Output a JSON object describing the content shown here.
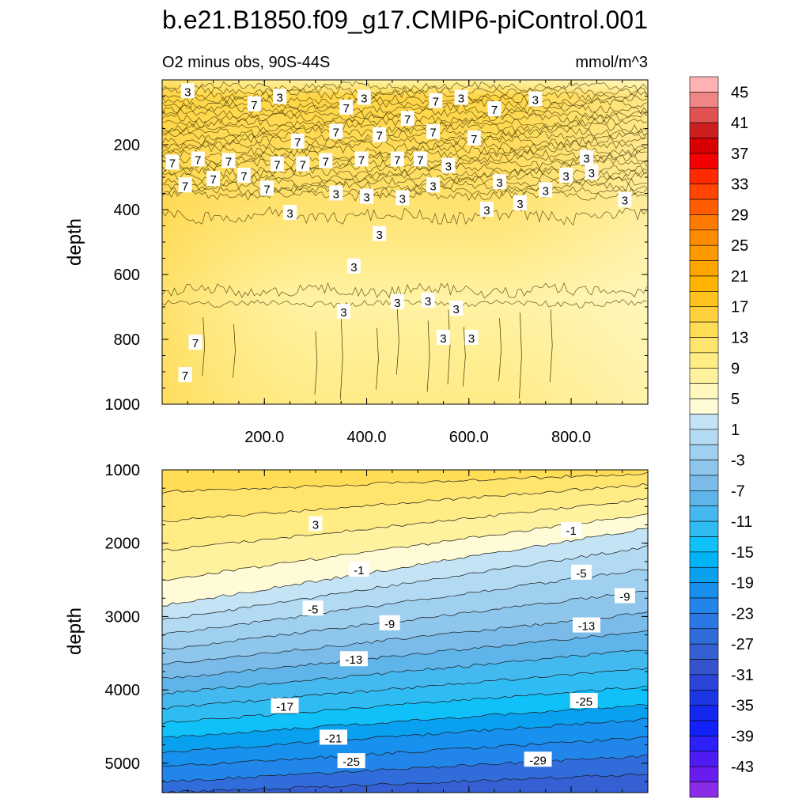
{
  "chart_data": {
    "type": "contour",
    "title": "b.e21.B1850.f09_g17.CMIP6-piControl.001",
    "subtitle_left": "O2 minus obs, 90S-44S",
    "subtitle_right": "mmol/m^3",
    "xlim": [
      0,
      950
    ],
    "x_ticks": [
      "200.0",
      "400.0",
      "600.0",
      "800.0"
    ],
    "x_tick_values": [
      200,
      400,
      600,
      800
    ],
    "panels": [
      {
        "name": "upper",
        "ylabel": "depth",
        "ylim": [
          0,
          1000
        ],
        "y_ticks": [
          "200",
          "400",
          "600",
          "800",
          "1000"
        ],
        "y_tick_values": [
          200,
          400,
          600,
          800,
          1000
        ],
        "contour_labels": [
          {
            "text": "3",
            "x": 50,
            "y": 35
          },
          {
            "text": "7",
            "x": 180,
            "y": 75
          },
          {
            "text": "3",
            "x": 230,
            "y": 52
          },
          {
            "text": "7",
            "x": 360,
            "y": 85
          },
          {
            "text": "3",
            "x": 395,
            "y": 55
          },
          {
            "text": "7",
            "x": 535,
            "y": 65
          },
          {
            "text": "3",
            "x": 585,
            "y": 55
          },
          {
            "text": "7",
            "x": 650,
            "y": 90
          },
          {
            "text": "3",
            "x": 730,
            "y": 60
          },
          {
            "text": "7",
            "x": 480,
            "y": 120
          },
          {
            "text": "7",
            "x": 425,
            "y": 170
          },
          {
            "text": "7",
            "x": 530,
            "y": 160
          },
          {
            "text": "7",
            "x": 340,
            "y": 160
          },
          {
            "text": "7",
            "x": 265,
            "y": 190
          },
          {
            "text": "7",
            "x": 610,
            "y": 180
          },
          {
            "text": "7",
            "x": 20,
            "y": 255
          },
          {
            "text": "7",
            "x": 70,
            "y": 245
          },
          {
            "text": "7",
            "x": 130,
            "y": 250
          },
          {
            "text": "7",
            "x": 225,
            "y": 260
          },
          {
            "text": "7",
            "x": 275,
            "y": 260
          },
          {
            "text": "7",
            "x": 320,
            "y": 250
          },
          {
            "text": "7",
            "x": 390,
            "y": 245
          },
          {
            "text": "7",
            "x": 460,
            "y": 245
          },
          {
            "text": "7",
            "x": 505,
            "y": 245
          },
          {
            "text": "3",
            "x": 560,
            "y": 265
          },
          {
            "text": "3",
            "x": 830,
            "y": 240
          },
          {
            "text": "3",
            "x": 790,
            "y": 295
          },
          {
            "text": "3",
            "x": 840,
            "y": 285
          },
          {
            "text": "7",
            "x": 45,
            "y": 325
          },
          {
            "text": "7",
            "x": 100,
            "y": 305
          },
          {
            "text": "7",
            "x": 160,
            "y": 295
          },
          {
            "text": "7",
            "x": 205,
            "y": 335
          },
          {
            "text": "3",
            "x": 340,
            "y": 350
          },
          {
            "text": "3",
            "x": 400,
            "y": 360
          },
          {
            "text": "3",
            "x": 470,
            "y": 365
          },
          {
            "text": "3",
            "x": 530,
            "y": 325
          },
          {
            "text": "3",
            "x": 660,
            "y": 315
          },
          {
            "text": "3",
            "x": 750,
            "y": 340
          },
          {
            "text": "3",
            "x": 635,
            "y": 400
          },
          {
            "text": "3",
            "x": 700,
            "y": 380
          },
          {
            "text": "3",
            "x": 905,
            "y": 370
          },
          {
            "text": "3",
            "x": 250,
            "y": 410
          },
          {
            "text": "3",
            "x": 425,
            "y": 475
          },
          {
            "text": "3",
            "x": 375,
            "y": 575
          },
          {
            "text": "3",
            "x": 355,
            "y": 715
          },
          {
            "text": "3",
            "x": 460,
            "y": 685
          },
          {
            "text": "3",
            "x": 520,
            "y": 680
          },
          {
            "text": "3",
            "x": 575,
            "y": 705
          },
          {
            "text": "3",
            "x": 550,
            "y": 795
          },
          {
            "text": "3",
            "x": 605,
            "y": 795
          },
          {
            "text": "7",
            "x": 65,
            "y": 810
          },
          {
            "text": "7",
            "x": 45,
            "y": 910
          }
        ]
      },
      {
        "name": "lower",
        "ylabel": "depth",
        "ylim": [
          1000,
          5400
        ],
        "y_ticks": [
          "1000",
          "2000",
          "3000",
          "4000",
          "5000"
        ],
        "y_tick_values": [
          1000,
          2000,
          3000,
          4000,
          5000
        ],
        "contour_labels": [
          {
            "text": "3",
            "x": 300,
            "y": 1740
          },
          {
            "text": "-1",
            "x": 800,
            "y": 1820
          },
          {
            "text": "-1",
            "x": 385,
            "y": 2360
          },
          {
            "text": "-5",
            "x": 820,
            "y": 2400
          },
          {
            "text": "-9",
            "x": 905,
            "y": 2720
          },
          {
            "text": "-5",
            "x": 295,
            "y": 2890
          },
          {
            "text": "-9",
            "x": 445,
            "y": 3090
          },
          {
            "text": "-13",
            "x": 830,
            "y": 3120
          },
          {
            "text": "-13",
            "x": 375,
            "y": 3580
          },
          {
            "text": "-17",
            "x": 240,
            "y": 4220
          },
          {
            "text": "-25",
            "x": 825,
            "y": 4150
          },
          {
            "text": "-21",
            "x": 335,
            "y": 4650
          },
          {
            "text": "-25",
            "x": 370,
            "y": 4970
          },
          {
            "text": "-29",
            "x": 735,
            "y": 4950
          }
        ]
      }
    ],
    "colorbar": {
      "labels": [
        "45",
        "41",
        "37",
        "33",
        "29",
        "25",
        "21",
        "17",
        "13",
        "9",
        "5",
        "1",
        "-3",
        "-7",
        "-11",
        "-15",
        "-19",
        "-23",
        "-27",
        "-31",
        "-35",
        "-39",
        "-43"
      ],
      "colors": [
        "#ffb3b3",
        "#f08585",
        "#e05252",
        "#cc1f1f",
        "#d80000",
        "#f50000",
        "#ff2a00",
        "#ff4500",
        "#ff5d00",
        "#ff7a00",
        "#ff8c00",
        "#ff9900",
        "#ffa500",
        "#ffb300",
        "#ffc21f",
        "#ffd23d",
        "#ffde55",
        "#ffe46e",
        "#ffec85",
        "#fff29f",
        "#fff7bb",
        "#fffbd6",
        "#c4e3f5",
        "#b2daf2",
        "#a0d0ef",
        "#8ec6ec",
        "#7abbe9",
        "#5fb5ea",
        "#44b9ef",
        "#2fbcf3",
        "#10c0f8",
        "#00b4f6",
        "#0aa0f0",
        "#1890ee",
        "#2285ea",
        "#2b78e4",
        "#306ddb",
        "#355fd3",
        "#3553cc",
        "#2a45d8",
        "#1c36e3",
        "#1528f0",
        "#1220fa",
        "#2d1ff7",
        "#4e1bf2",
        "#6a1cee",
        "#8a2be8"
      ]
    },
    "colors": {
      "upper_base": "#ffe97e",
      "lower_base": "#8ec6ec"
    }
  }
}
